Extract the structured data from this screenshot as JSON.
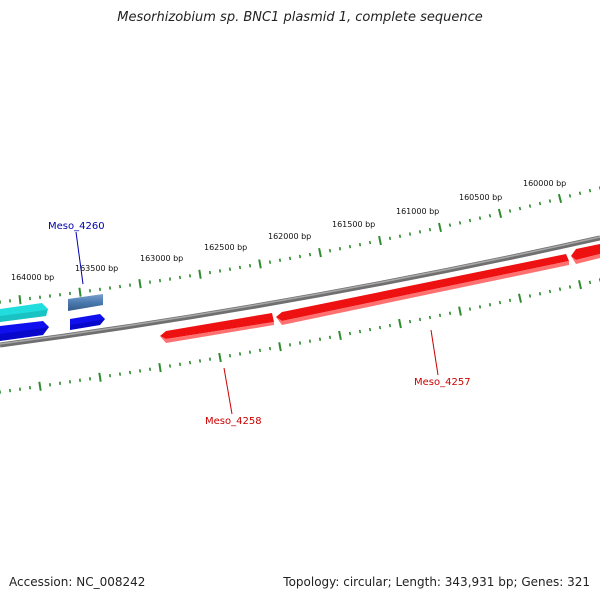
{
  "title": "Mesorhizobium sp. BNC1 plasmid 1, complete sequence",
  "footer": {
    "accession": "Accession: NC_008242",
    "summary": "Topology: circular; Length: 343,931 bp; Genes: 321"
  },
  "colors": {
    "tick": "#2e8b2e",
    "backbone": "#808080",
    "gene_red": "#ee1111",
    "gene_blue": "#1111ee",
    "gene_cyan": "#22dddd",
    "gene_steel": "#4a7ab0",
    "label_red": "#cc0000",
    "label_blue": "#0000aa"
  },
  "scale": {
    "unit": "bp",
    "labels": [
      {
        "text": "164000 bp",
        "value": 164000
      },
      {
        "text": "163500 bp",
        "value": 163500
      },
      {
        "text": "163000 bp",
        "value": 163000
      },
      {
        "text": "162500 bp",
        "value": 162500
      },
      {
        "text": "162000 bp",
        "value": 162000
      },
      {
        "text": "161500 bp",
        "value": 161500
      },
      {
        "text": "161000 bp",
        "value": 161000
      },
      {
        "text": "160500 bp",
        "value": 160500
      },
      {
        "text": "160000 bp",
        "value": 160000
      }
    ]
  },
  "genes": [
    {
      "name": "Meso_4260",
      "label": "Meso_4260",
      "color_key": "gene_steel",
      "label_color_key": "label_blue"
    },
    {
      "name": "Meso_4258",
      "label": "Meso_4258",
      "color_key": "gene_red",
      "label_color_key": "label_red"
    },
    {
      "name": "Meso_4257",
      "label": "Meso_4257",
      "color_key": "gene_red",
      "label_color_key": "label_red"
    }
  ]
}
